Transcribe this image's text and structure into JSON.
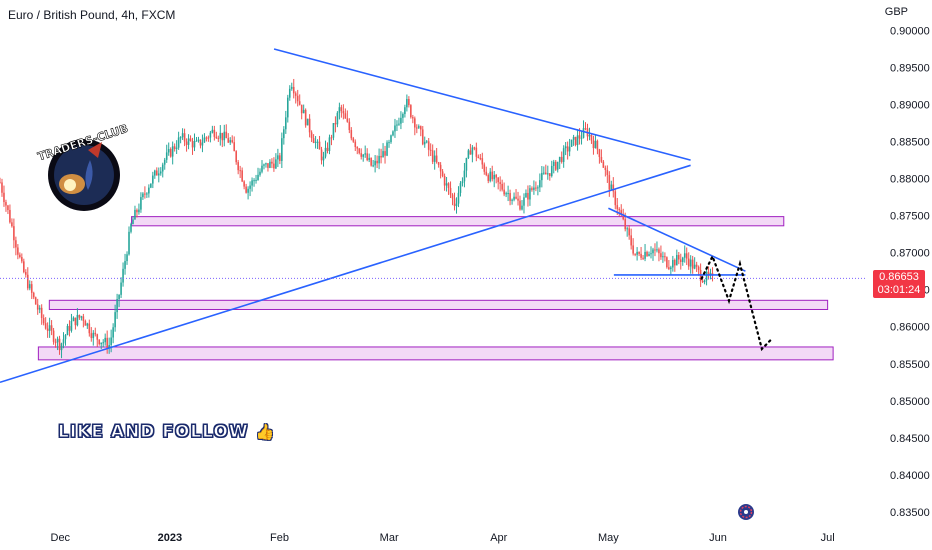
{
  "header": {
    "symbol_title": "Euro / British Pound, 4h, FXCM",
    "currency": "GBP"
  },
  "price_tag": {
    "price": "0.86653",
    "countdown": "03:01:24",
    "color": "#f23645"
  },
  "logo": {
    "text": "TRADERS-CLUB"
  },
  "overlay_text": {
    "label": "LIKE AND FOLLOW",
    "icon": "thumbs-up-icon"
  },
  "bottom_icon": "circle-logo-icon",
  "colors": {
    "up": "#26a69a",
    "down": "#ef5350",
    "trendline": "#2962ff",
    "zone_fill": "#f3d9f6",
    "zone_stroke": "#a020c0",
    "price_line": "#7b61ff"
  },
  "chart_data": {
    "type": "candlestick",
    "timeframe": "4h",
    "y_axis": {
      "side": "right",
      "ticks": [
        0.9,
        0.895,
        0.89,
        0.885,
        0.88,
        0.875,
        0.87,
        0.865,
        0.86,
        0.855,
        0.85,
        0.845,
        0.84,
        0.835
      ],
      "tick_labels": [
        "0.90000",
        "0.89500",
        "0.89000",
        "0.88500",
        "0.88000",
        "0.87500",
        "0.87000",
        "0.86500",
        "0.86000",
        "0.85500",
        "0.85000",
        "0.84500",
        "0.84000",
        "0.83500"
      ],
      "range": [
        0.8335,
        0.9025
      ]
    },
    "x_axis": {
      "tick_labels": [
        "Dec",
        "2023",
        "Feb",
        "Mar",
        "Apr",
        "May",
        "Jun",
        "Jul"
      ],
      "tick_positions_months": [
        0,
        1,
        2,
        3,
        4,
        5,
        6,
        7
      ],
      "range_months": [
        -0.55,
        7.35
      ]
    },
    "last_price": 0.86653,
    "price_path": [
      [
        -0.55,
        0.8795
      ],
      [
        -0.45,
        0.874
      ],
      [
        -0.35,
        0.868
      ],
      [
        -0.25,
        0.864
      ],
      [
        -0.15,
        0.8605
      ],
      [
        0.0,
        0.8575
      ],
      [
        0.1,
        0.8605
      ],
      [
        0.2,
        0.8615
      ],
      [
        0.3,
        0.8588
      ],
      [
        0.45,
        0.8575
      ],
      [
        0.55,
        0.8655
      ],
      [
        0.65,
        0.874
      ],
      [
        0.8,
        0.879
      ],
      [
        0.95,
        0.8825
      ],
      [
        1.1,
        0.8855
      ],
      [
        1.25,
        0.8845
      ],
      [
        1.4,
        0.8865
      ],
      [
        1.55,
        0.885
      ],
      [
        1.7,
        0.8785
      ],
      [
        1.85,
        0.8815
      ],
      [
        2.0,
        0.8825
      ],
      [
        2.1,
        0.8935
      ],
      [
        2.25,
        0.8875
      ],
      [
        2.4,
        0.8825
      ],
      [
        2.55,
        0.8895
      ],
      [
        2.7,
        0.8845
      ],
      [
        2.85,
        0.8815
      ],
      [
        3.0,
        0.8845
      ],
      [
        3.15,
        0.8905
      ],
      [
        3.3,
        0.8855
      ],
      [
        3.45,
        0.8815
      ],
      [
        3.6,
        0.8765
      ],
      [
        3.75,
        0.8845
      ],
      [
        3.9,
        0.8805
      ],
      [
        4.05,
        0.8785
      ],
      [
        4.2,
        0.8765
      ],
      [
        4.35,
        0.8795
      ],
      [
        4.5,
        0.8815
      ],
      [
        4.65,
        0.8845
      ],
      [
        4.8,
        0.8865
      ],
      [
        4.92,
        0.8835
      ],
      [
        5.0,
        0.8795
      ],
      [
        5.1,
        0.8755
      ],
      [
        5.25,
        0.8695
      ],
      [
        5.4,
        0.8705
      ],
      [
        5.55,
        0.8685
      ],
      [
        5.7,
        0.8695
      ],
      [
        5.85,
        0.8668
      ],
      [
        5.95,
        0.8665
      ]
    ],
    "trendlines": [
      {
        "name": "upper-triangle-line",
        "from": [
          1.95,
          0.8975
        ],
        "to": [
          5.75,
          0.8825
        ]
      },
      {
        "name": "lower-triangle-line",
        "from": [
          -0.55,
          0.8525
        ],
        "to": [
          5.75,
          0.8818
        ]
      },
      {
        "name": "wedge-top-line",
        "from": [
          5.0,
          0.876
        ],
        "to": [
          6.25,
          0.8675
        ]
      },
      {
        "name": "wedge-bottom-line",
        "from": [
          5.05,
          0.867
        ],
        "to": [
          6.25,
          0.867
        ]
      }
    ],
    "zones": [
      {
        "name": "resistance-zone",
        "from_x": 0.65,
        "to_x": 6.6,
        "top": 0.8746,
        "bottom": 0.8739
      },
      {
        "name": "support-zone-mid",
        "from_x": -0.1,
        "to_x": 7.0,
        "top": 0.8633,
        "bottom": 0.8626
      },
      {
        "name": "support-zone-low",
        "from_x": -0.2,
        "to_x": 7.05,
        "top": 0.857,
        "bottom": 0.8558
      }
    ],
    "projection": [
      [
        5.85,
        0.8665
      ],
      [
        5.95,
        0.8695
      ],
      [
        6.1,
        0.8635
      ],
      [
        6.2,
        0.8685
      ],
      [
        6.4,
        0.857
      ],
      [
        6.5,
        0.8585
      ]
    ],
    "grid": false
  }
}
